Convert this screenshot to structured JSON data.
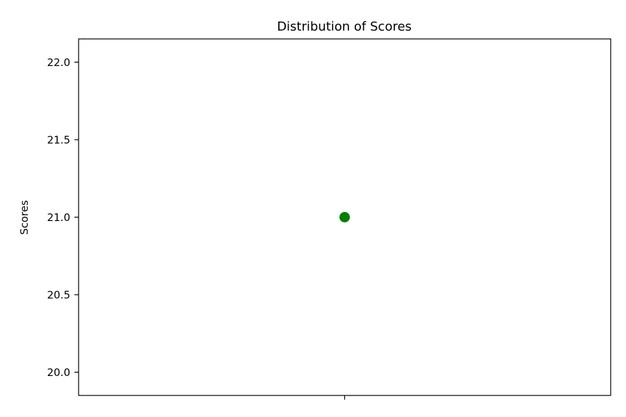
{
  "chart_data": {
    "type": "scatter",
    "title": "Distribution of Scores",
    "xlabel": "",
    "ylabel": "Scores",
    "x_ticks": [
      ""
    ],
    "y_ticks": [
      20.0,
      20.5,
      21.0,
      21.5,
      22.0
    ],
    "y_tick_labels": [
      "20.0",
      "20.5",
      "21.0",
      "21.5",
      "22.0"
    ],
    "ylim": [
      19.85,
      22.15
    ],
    "xlim": [
      -0.5,
      0.5
    ],
    "grid": false,
    "series": [
      {
        "x": [
          0
        ],
        "y": [
          21.0
        ],
        "color": "#008000"
      }
    ]
  }
}
